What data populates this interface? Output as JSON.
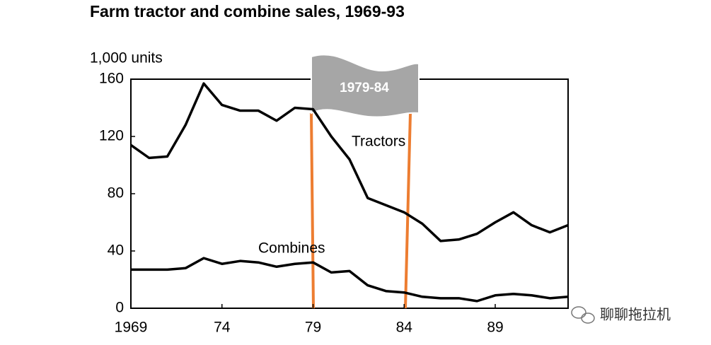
{
  "chart_data": {
    "type": "line",
    "title": "Farm tractor and combine sales, 1969-93",
    "y_label": "1,000 units",
    "annotation": "1979-84",
    "watermark": "聊聊拖拉机",
    "x": [
      1969,
      1970,
      1971,
      1972,
      1973,
      1974,
      1975,
      1976,
      1977,
      1978,
      1979,
      1980,
      1981,
      1982,
      1983,
      1984,
      1985,
      1986,
      1987,
      1988,
      1989,
      1990,
      1991,
      1992,
      1993
    ],
    "series": [
      {
        "name": "Tractors",
        "color": "#000000",
        "values": [
          114,
          105,
          106,
          128,
          157,
          142,
          138,
          138,
          131,
          140,
          139,
          120,
          104,
          77,
          72,
          67,
          59,
          47,
          48,
          52,
          60,
          67,
          58,
          53,
          58
        ]
      },
      {
        "name": "Combines",
        "color": "#000000",
        "values": [
          27,
          27,
          27,
          28,
          35,
          31,
          33,
          32,
          29,
          31,
          32,
          25,
          26,
          16,
          12,
          11,
          8,
          7,
          7,
          5,
          9,
          10,
          9,
          7,
          8
        ]
      }
    ],
    "xlim": [
      1969,
      1993
    ],
    "xticks": [
      1969,
      {
        "value": 1974,
        "label": "74"
      },
      {
        "value": 1979,
        "label": "79"
      },
      {
        "value": 1984,
        "label": "84"
      },
      {
        "value": 1989,
        "label": "89"
      }
    ],
    "ylim": [
      0,
      160
    ],
    "yticks": [
      0,
      40,
      80,
      120,
      160
    ],
    "grid": false
  }
}
